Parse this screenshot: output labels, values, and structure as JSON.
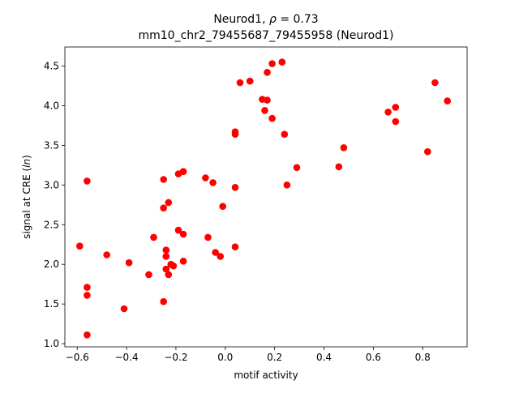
{
  "chart_data": {
    "type": "scatter",
    "title_line1": "Neurod1, ρ = 0.73",
    "title_line2": "mm10_chr2_79455687_79455958 (Neurod1)",
    "xlabel": "motif activity",
    "ylabel": "signal at CRE (ln)",
    "xlim": [
      -0.65,
      0.98
    ],
    "ylim": [
      0.96,
      4.74
    ],
    "xticks": [
      -0.6,
      -0.4,
      -0.2,
      0.0,
      0.2,
      0.4,
      0.6,
      0.8
    ],
    "xtick_labels": [
      "−0.6",
      "−0.4",
      "−0.2",
      "0.0",
      "0.2",
      "0.4",
      "0.6",
      "0.8"
    ],
    "yticks": [
      1.0,
      1.5,
      2.0,
      2.5,
      3.0,
      3.5,
      4.0,
      4.5
    ],
    "ytick_labels": [
      "1.0",
      "1.5",
      "2.0",
      "2.5",
      "3.0",
      "3.5",
      "4.0",
      "4.5"
    ],
    "grid": false,
    "marker_color": "#ff0000",
    "points": [
      {
        "x": -0.59,
        "y": 2.23
      },
      {
        "x": -0.56,
        "y": 3.05
      },
      {
        "x": -0.56,
        "y": 1.71
      },
      {
        "x": -0.56,
        "y": 1.61
      },
      {
        "x": -0.56,
        "y": 1.11
      },
      {
        "x": -0.48,
        "y": 2.12
      },
      {
        "x": -0.41,
        "y": 1.44
      },
      {
        "x": -0.39,
        "y": 2.02
      },
      {
        "x": -0.31,
        "y": 1.87
      },
      {
        "x": -0.29,
        "y": 2.34
      },
      {
        "x": -0.25,
        "y": 2.71
      },
      {
        "x": -0.25,
        "y": 3.07
      },
      {
        "x": -0.25,
        "y": 1.53
      },
      {
        "x": -0.24,
        "y": 2.18
      },
      {
        "x": -0.24,
        "y": 2.1
      },
      {
        "x": -0.24,
        "y": 1.94
      },
      {
        "x": -0.23,
        "y": 1.87
      },
      {
        "x": -0.23,
        "y": 2.78
      },
      {
        "x": -0.22,
        "y": 2.0
      },
      {
        "x": -0.21,
        "y": 1.98
      },
      {
        "x": -0.19,
        "y": 3.14
      },
      {
        "x": -0.19,
        "y": 2.43
      },
      {
        "x": -0.17,
        "y": 3.17
      },
      {
        "x": -0.17,
        "y": 2.38
      },
      {
        "x": -0.17,
        "y": 2.04
      },
      {
        "x": -0.08,
        "y": 3.09
      },
      {
        "x": -0.07,
        "y": 2.34
      },
      {
        "x": -0.05,
        "y": 3.03
      },
      {
        "x": -0.04,
        "y": 2.15
      },
      {
        "x": -0.02,
        "y": 2.1
      },
      {
        "x": -0.01,
        "y": 2.73
      },
      {
        "x": 0.04,
        "y": 2.97
      },
      {
        "x": 0.04,
        "y": 2.22
      },
      {
        "x": 0.04,
        "y": 3.64
      },
      {
        "x": 0.04,
        "y": 3.67
      },
      {
        "x": 0.06,
        "y": 4.29
      },
      {
        "x": 0.1,
        "y": 4.31
      },
      {
        "x": 0.15,
        "y": 4.08
      },
      {
        "x": 0.16,
        "y": 3.94
      },
      {
        "x": 0.17,
        "y": 4.07
      },
      {
        "x": 0.17,
        "y": 4.42
      },
      {
        "x": 0.19,
        "y": 4.53
      },
      {
        "x": 0.19,
        "y": 3.84
      },
      {
        "x": 0.23,
        "y": 4.55
      },
      {
        "x": 0.24,
        "y": 3.64
      },
      {
        "x": 0.25,
        "y": 3.0
      },
      {
        "x": 0.29,
        "y": 3.22
      },
      {
        "x": 0.46,
        "y": 3.23
      },
      {
        "x": 0.48,
        "y": 3.47
      },
      {
        "x": 0.66,
        "y": 3.92
      },
      {
        "x": 0.69,
        "y": 3.98
      },
      {
        "x": 0.69,
        "y": 3.8
      },
      {
        "x": 0.82,
        "y": 3.42
      },
      {
        "x": 0.85,
        "y": 4.29
      },
      {
        "x": 0.9,
        "y": 4.06
      }
    ]
  }
}
